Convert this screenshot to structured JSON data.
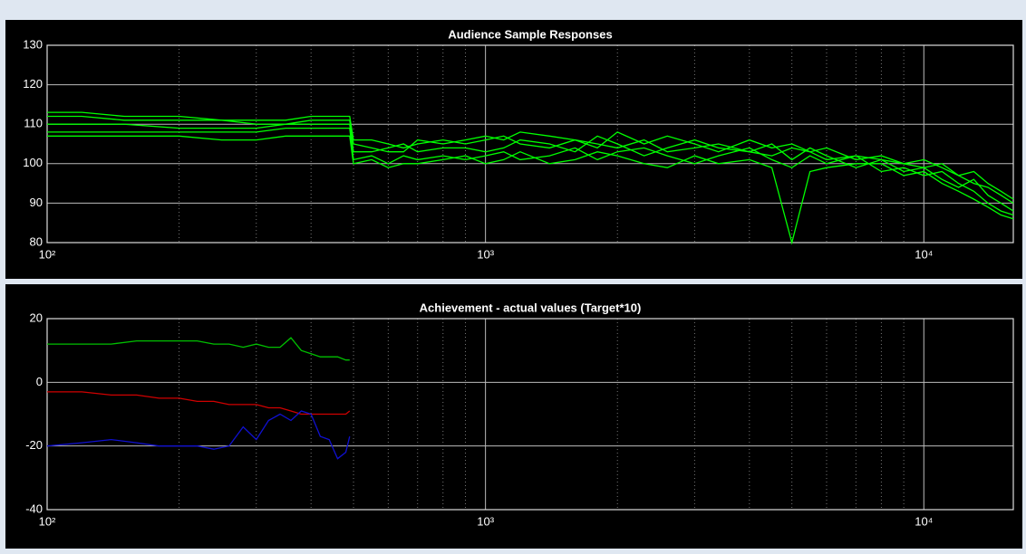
{
  "chart_data": [
    {
      "type": "line",
      "title": "Audience Sample Responses",
      "xscale": "log",
      "grid": true,
      "minor_grid": true,
      "color": "#00ff00",
      "xlim": [
        100,
        16000
      ],
      "xticks": [
        {
          "value": 100,
          "label": "10²"
        },
        {
          "value": 1000,
          "label": "10³"
        },
        {
          "value": 10000,
          "label": "10⁴"
        }
      ],
      "ylim": [
        80,
        130
      ],
      "yticks": [
        80,
        90,
        100,
        110,
        120,
        130
      ],
      "x": [
        100,
        120,
        150,
        200,
        250,
        300,
        350,
        400,
        450,
        490,
        500,
        550,
        600,
        650,
        700,
        800,
        900,
        1000,
        1100,
        1200,
        1400,
        1600,
        1800,
        2000,
        2300,
        2600,
        3000,
        3400,
        4000,
        4500,
        5000,
        5500,
        6000,
        7000,
        8000,
        9000,
        10000,
        11000,
        12000,
        13000,
        14000,
        15000,
        16000
      ],
      "series": [
        {
          "values": [
            113,
            113,
            112,
            112,
            111,
            111,
            111,
            112,
            112,
            112,
            106,
            106,
            105,
            104,
            105,
            106,
            105,
            106,
            107,
            105,
            104,
            106,
            105,
            104,
            106,
            103,
            104,
            105,
            103,
            102,
            104,
            103,
            101,
            102,
            101,
            100,
            99,
            100,
            97,
            95,
            94,
            92,
            90
          ]
        },
        {
          "values": [
            110,
            110,
            110,
            109,
            109,
            109,
            110,
            110,
            110,
            110,
            103,
            103,
            104,
            105,
            103,
            104,
            104,
            103,
            104,
            106,
            105,
            103,
            107,
            105,
            102,
            104,
            106,
            104,
            103,
            105,
            101,
            104,
            102,
            99,
            101,
            98,
            99,
            96,
            94,
            96,
            92,
            90,
            88
          ]
        },
        {
          "values": [
            108,
            108,
            108,
            108,
            108,
            108,
            109,
            109,
            109,
            109,
            101,
            102,
            100,
            102,
            101,
            102,
            101,
            102,
            103,
            101,
            102,
            104,
            101,
            103,
            104,
            102,
            100,
            102,
            104,
            101,
            99,
            102,
            100,
            102,
            98,
            99,
            97,
            98,
            95,
            93,
            90,
            88,
            87
          ]
        },
        {
          "values": [
            112,
            112,
            111,
            111,
            111,
            110,
            110,
            111,
            111,
            111,
            105,
            104,
            103,
            103,
            106,
            105,
            106,
            107,
            106,
            108,
            107,
            106,
            104,
            108,
            105,
            107,
            105,
            103,
            106,
            104,
            105,
            103,
            104,
            101,
            102,
            100,
            101,
            99,
            97,
            98,
            95,
            93,
            91
          ]
        },
        {
          "values": [
            107,
            107,
            107,
            107,
            106,
            106,
            107,
            107,
            107,
            107,
            100,
            101,
            99,
            100,
            100,
            101,
            102,
            100,
            101,
            103,
            100,
            101,
            103,
            102,
            100,
            99,
            102,
            100,
            101,
            99,
            80,
            98,
            99,
            100,
            100,
            97,
            98,
            95,
            93,
            91,
            89,
            87,
            86
          ]
        }
      ]
    },
    {
      "type": "line",
      "title": "Achievement - actual values (Target*10)",
      "xscale": "log",
      "grid": true,
      "minor_grid": true,
      "xlim": [
        100,
        16000
      ],
      "xticks": [
        {
          "value": 100,
          "label": "10²"
        },
        {
          "value": 1000,
          "label": "10³"
        },
        {
          "value": 10000,
          "label": "10⁴"
        }
      ],
      "ylim": [
        -40,
        20
      ],
      "yticks": [
        -40,
        -20,
        0,
        20
      ],
      "x": [
        100,
        120,
        140,
        160,
        180,
        200,
        220,
        240,
        260,
        280,
        300,
        320,
        340,
        360,
        380,
        400,
        420,
        440,
        460,
        480,
        490
      ],
      "series": [
        {
          "color": "#00c000",
          "values": [
            12,
            12,
            12,
            13,
            13,
            13,
            13,
            12,
            12,
            11,
            12,
            11,
            11,
            14,
            10,
            9,
            8,
            8,
            8,
            7,
            7
          ]
        },
        {
          "color": "#d00000",
          "values": [
            -3,
            -3,
            -4,
            -4,
            -5,
            -5,
            -6,
            -6,
            -7,
            -7,
            -7,
            -8,
            -8,
            -9,
            -10,
            -10,
            -10,
            -10,
            -10,
            -10,
            -9
          ]
        },
        {
          "color": "#1010d0",
          "values": [
            -20,
            -19,
            -18,
            -19,
            -20,
            -20,
            -20,
            -21,
            -20,
            -14,
            -18,
            -12,
            -10,
            -12,
            -9,
            -10,
            -17,
            -18,
            -24,
            -22,
            -17
          ]
        }
      ]
    }
  ]
}
